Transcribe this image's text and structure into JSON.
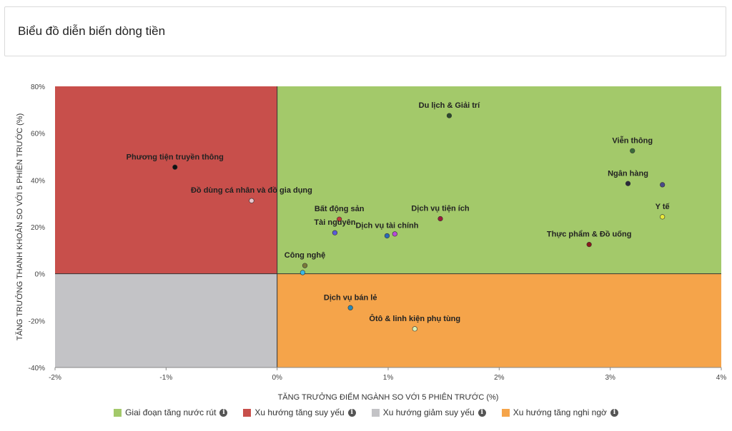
{
  "header": {
    "title": "Biểu đồ diễn biến dòng tiền"
  },
  "chart_data": {
    "type": "scatter",
    "xlabel": "TĂNG TRƯỞNG ĐIỂM NGÀNH SO VỚI 5 PHIÊN TRƯỚC (%)",
    "ylabel": "TĂNG TRƯỞNG THANH KHOẢN SO VỚI 5 PHIÊN TRƯỚC (%)",
    "xlim": [
      -2,
      4
    ],
    "ylim": [
      -40,
      80
    ],
    "xticks": [
      -2,
      -1,
      0,
      1,
      2,
      3,
      4
    ],
    "yticks": [
      -40,
      -20,
      0,
      20,
      40,
      60,
      80
    ],
    "xtick_labels": [
      "-2%",
      "-1%",
      "0%",
      "1%",
      "2%",
      "3%",
      "4%"
    ],
    "ytick_labels": [
      "-40%",
      "-20%",
      "0%",
      "20%",
      "40%",
      "60%",
      "80%"
    ],
    "quadrant_colors": {
      "top_right": "#a3c96a",
      "top_left": "#c84f4b",
      "bottom_left": "#c3c3c6",
      "bottom_right": "#f5a44a"
    },
    "points": [
      {
        "name": "Du lịch & Giải trí",
        "x": 1.55,
        "y": 67.5,
        "color": "#2d4a2d"
      },
      {
        "name": "Viễn thông",
        "x": 3.2,
        "y": 52.5,
        "color": "#3a6b3a"
      },
      {
        "name": "Ngân hàng",
        "x": 3.16,
        "y": 38.5,
        "color": "#2a2a3a"
      },
      {
        "name": "",
        "x": 3.47,
        "y": 38.0,
        "color": "#4a4a8a"
      },
      {
        "name": "Y tế",
        "x": 3.47,
        "y": 24.3,
        "color": "#e8e83a"
      },
      {
        "name": "Thực phẩm & Đồ uống",
        "x": 2.81,
        "y": 12.5,
        "color": "#8a1a1a"
      },
      {
        "name": "Phương tiện truyền thông",
        "x": -0.92,
        "y": 45.5,
        "color": "#111111"
      },
      {
        "name": "Đồ dùng cá nhân và đồ gia dụng",
        "x": -0.23,
        "y": 31.2,
        "color": "#e8c8d0"
      },
      {
        "name": "Bất động sản",
        "x": 0.56,
        "y": 23.3,
        "color": "#c03a3a"
      },
      {
        "name": "Dịch vụ tiện ích",
        "x": 1.47,
        "y": 23.5,
        "color": "#9a1a3a"
      },
      {
        "name": "Tài nguyên",
        "x": 0.52,
        "y": 17.5,
        "color": "#5a5ad8"
      },
      {
        "name": "Dịch vụ tài chính",
        "x": 0.99,
        "y": 16.2,
        "color": "#2a6ab8"
      },
      {
        "name": "",
        "x": 1.06,
        "y": 17.0,
        "color": "#b84ad8"
      },
      {
        "name": "Công nghệ",
        "x": 0.25,
        "y": 3.5,
        "color": "#7a7a3a"
      },
      {
        "name": "",
        "x": 0.23,
        "y": 0.5,
        "color": "#3ab8e8"
      },
      {
        "name": "Dịch vụ bán lẻ",
        "x": 0.66,
        "y": -14.5,
        "color": "#2a8ab8"
      },
      {
        "name": "Ôtô & linh kiện phụ tùng",
        "x": 1.24,
        "y": -23.5,
        "color": "#d8f0b8"
      }
    ]
  },
  "legend": {
    "items": [
      {
        "label": "Giai đoạn tăng nước rút",
        "color": "#a3c96a"
      },
      {
        "label": "Xu hướng tăng suy yếu",
        "color": "#c84f4b"
      },
      {
        "label": "Xu hướng giảm suy yếu",
        "color": "#c3c3c6"
      },
      {
        "label": "Xu hướng tăng nghi ngờ",
        "color": "#f5a44a"
      }
    ],
    "info_glyph": "i"
  }
}
